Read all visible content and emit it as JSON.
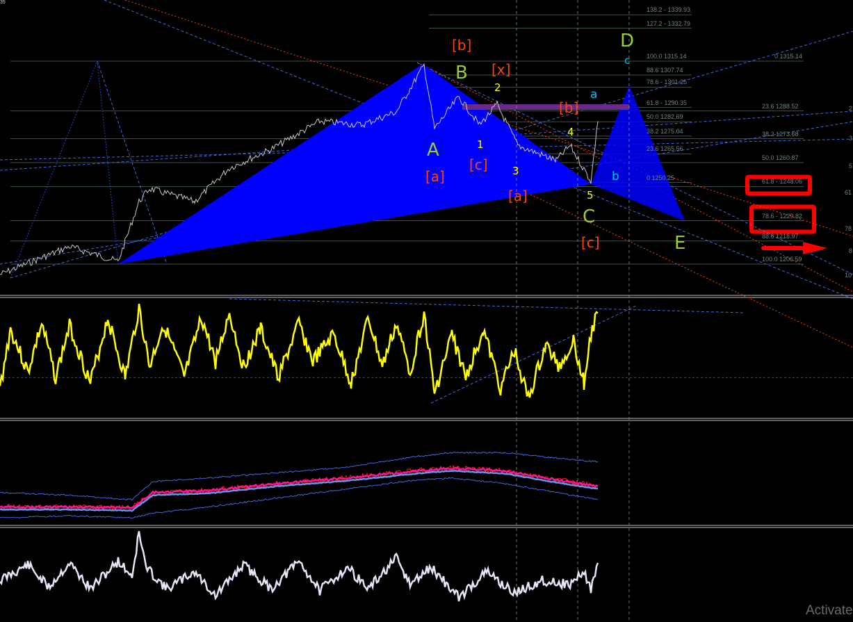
{
  "chart_data": {
    "type": "line",
    "title": "",
    "corner_label": "35",
    "price_axis_unit": "price",
    "price_range": [
      1195,
      1345
    ],
    "price_series": {
      "x_bars": [
        0,
        20,
        34,
        40,
        43,
        56,
        66,
        78,
        92,
        104,
        114,
        122,
        125,
        132,
        138,
        143,
        149,
        160,
        164,
        170,
        172
      ],
      "values": [
        1201,
        1216,
        1208,
        1240,
        1247,
        1240,
        1258,
        1268,
        1283,
        1281,
        1288,
        1313,
        1279,
        1296,
        1281,
        1292,
        1270,
        1262,
        1270,
        1251,
        1283
      ]
    },
    "fib_levels_left": [
      {
        "level": "138.2",
        "price": "1339.93",
        "text": "138.2 - 1339.93"
      },
      {
        "level": "127.2",
        "price": "1332.79",
        "text": "127.2 - 1332.79"
      },
      {
        "level": "100.0",
        "price": "1315.14",
        "text": "100.0 1315.14"
      },
      {
        "level": "88.6",
        "price": "1307.74",
        "text": "88.6 1307.74"
      },
      {
        "level": "78.6",
        "price": "1301.25",
        "text": "78.6 - 1301.25"
      },
      {
        "level": "61.8",
        "price": "1290.35",
        "text": "61.8 - 1290.35"
      },
      {
        "level": "50.0",
        "price": "1282.69",
        "text": "50.0 1282.69"
      },
      {
        "level": "38.2",
        "price": "1275.04",
        "text": "38.2 1275.04"
      },
      {
        "level": "23.6",
        "price": "1265.56",
        "text": "23.6 1265.56"
      },
      {
        "level": "0",
        "price": "1250.25",
        "text": "0 1250.25"
      }
    ],
    "fib_levels_right": [
      {
        "level": "0",
        "price": "1315.14",
        "text": "0 1315.14"
      },
      {
        "level": "23.6",
        "price": "1288.52",
        "text": "23.6 1288.52"
      },
      {
        "level": "38.2",
        "price": "1273.68",
        "text": "38.2 1273.68"
      },
      {
        "level": "50.0",
        "price": "1260.87",
        "text": "50.0 1260.87"
      },
      {
        "level": "61.8",
        "price": "1248.06",
        "text": "61.8 - 1248.06",
        "highlighted": true
      },
      {
        "level": "78.6",
        "price": "1229.82",
        "text": "78.6 - 1229.82",
        "highlighted": true
      },
      {
        "level": "88.6",
        "price": "1218.97",
        "text": "88.6 1218.97"
      },
      {
        "level": "100.0",
        "price": "1206.59",
        "text": "100.0 1206.59"
      }
    ],
    "edge_labels": [
      "2",
      "3",
      "5",
      "61",
      "78",
      "8",
      "10"
    ],
    "wave_labels": {
      "major": [
        "A",
        "B",
        "C",
        "D",
        "E"
      ],
      "bracket": [
        "[b]",
        "[x]",
        "[a]",
        "[c]",
        "[b]",
        "[a]",
        "[c]"
      ],
      "minor_numbers": [
        "1",
        "2",
        "3",
        "4",
        "5"
      ],
      "minor_letters": [
        "a",
        "b",
        "c"
      ]
    },
    "oscillator": {
      "range": [
        0,
        100
      ],
      "reference_level": 30,
      "x_bars": [
        0,
        3,
        8,
        12,
        16,
        20,
        26,
        31,
        36,
        40,
        43,
        47,
        53,
        58,
        62,
        66,
        70,
        75,
        80,
        86,
        90,
        96,
        101,
        106,
        110,
        114,
        118,
        122,
        125,
        130,
        134,
        139,
        144,
        148,
        152,
        157,
        161,
        165,
        168,
        170,
        172
      ],
      "values": [
        20,
        75,
        35,
        80,
        30,
        78,
        25,
        85,
        30,
        95,
        40,
        80,
        30,
        85,
        45,
        90,
        40,
        75,
        30,
        80,
        45,
        70,
        25,
        85,
        40,
        80,
        35,
        90,
        15,
        70,
        30,
        75,
        20,
        55,
        10,
        60,
        40,
        65,
        25,
        70,
        90
      ]
    },
    "bands": {
      "x_bars": [
        0,
        20,
        38,
        44,
        60,
        80,
        100,
        120,
        130,
        145,
        160,
        172
      ],
      "mid": [
        12,
        12,
        11,
        28,
        30,
        38,
        44,
        52,
        55,
        52,
        42,
        35
      ],
      "upper": [
        28,
        25,
        20,
        40,
        44,
        50,
        56,
        68,
        72,
        72,
        66,
        62
      ],
      "lower": [
        0,
        2,
        0,
        5,
        12,
        22,
        32,
        42,
        44,
        38,
        28,
        20
      ]
    },
    "lower_oscillator": {
      "x_bars": [
        0,
        8,
        14,
        20,
        26,
        34,
        38,
        40,
        42,
        48,
        56,
        62,
        70,
        78,
        86,
        92,
        100,
        106,
        114,
        118,
        124,
        132,
        140,
        148,
        156,
        164,
        168,
        170,
        172
      ],
      "values": [
        40,
        58,
        32,
        60,
        30,
        62,
        45,
        95,
        55,
        30,
        50,
        22,
        58,
        30,
        62,
        28,
        55,
        30,
        65,
        35,
        55,
        20,
        50,
        25,
        40,
        35,
        50,
        30,
        60
      ]
    },
    "colors": {
      "background": "#000000",
      "price": "#c8c8c8",
      "pattern_fill": "#0000ff",
      "oscillator": "#ffff00",
      "reference_line": "#9400d3",
      "bands_mid": "#6495ed",
      "bands_fast": "#ff1493",
      "lower_oscillator": "#e6e6fa",
      "highlight_box": "#ff0000",
      "fib_text": "#6e8585"
    }
  },
  "watermark": "Activate"
}
